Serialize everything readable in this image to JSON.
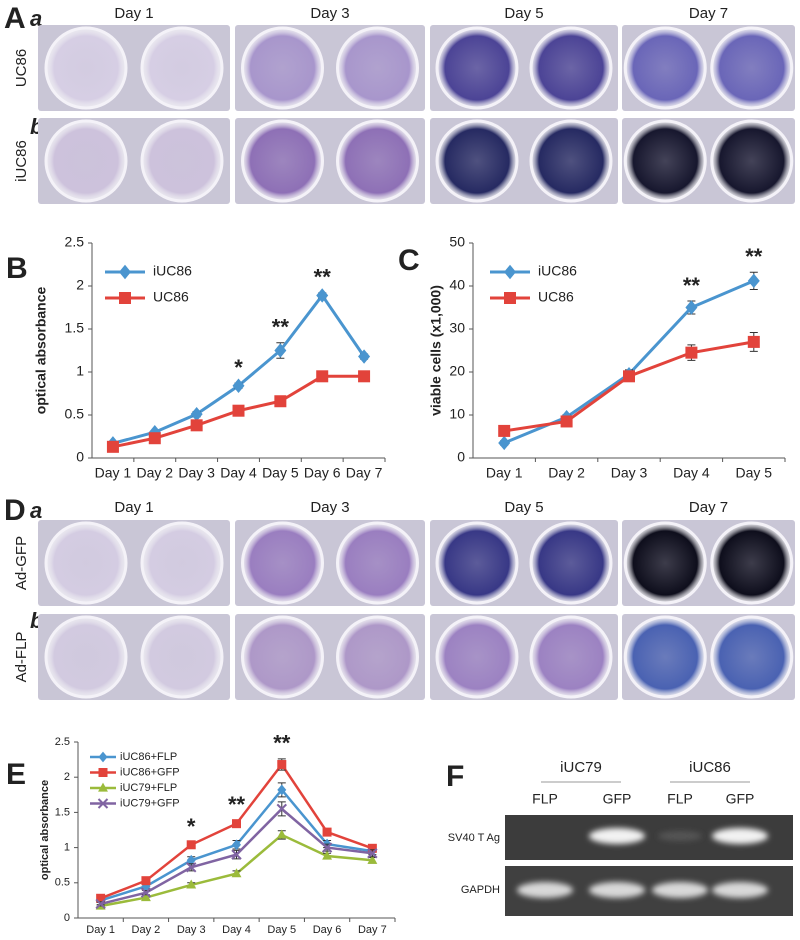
{
  "panel_labels": [
    "A",
    "B",
    "C",
    "D",
    "E",
    "F"
  ],
  "panel_A": {
    "sublabels": [
      "a",
      "b"
    ],
    "days": [
      "Day 1",
      "Day 3",
      "Day 5",
      "Day 7"
    ],
    "rows": [
      "UC86",
      "iUC86"
    ]
  },
  "panel_D": {
    "sublabels": [
      "a",
      "b"
    ],
    "days": [
      "Day 1",
      "Day 3",
      "Day 5",
      "Day 7"
    ],
    "rows": [
      "Ad-GFP",
      "Ad-FLP"
    ]
  },
  "panel_F": {
    "groups": [
      "iUC79",
      "iUC86"
    ],
    "lanes": [
      "FLP",
      "GFP",
      "FLP",
      "GFP"
    ],
    "rows": [
      "SV40 T Ag",
      "GAPDH"
    ]
  },
  "chart_data": [
    {
      "type": "line",
      "ylabel": "optical absorbance",
      "categories": [
        "Day 1",
        "Day 2",
        "Day 3",
        "Day 4",
        "Day 5",
        "Day 6",
        "Day 7"
      ],
      "ylim": [
        0,
        2.5
      ],
      "yticks": [
        0,
        0.5,
        1,
        1.5,
        2,
        2.5
      ],
      "series": [
        {
          "name": "iUC86",
          "color": "#4a95cf",
          "marker": "diamond",
          "values": [
            0.17,
            0.3,
            0.51,
            0.84,
            1.25,
            1.89,
            1.18
          ],
          "errors": [
            0.02,
            0.02,
            0.03,
            0.03,
            0.09,
            0.03,
            0.03
          ]
        },
        {
          "name": "UC86",
          "color": "#e2433b",
          "marker": "square",
          "values": [
            0.13,
            0.23,
            0.38,
            0.55,
            0.66,
            0.95,
            0.95
          ],
          "errors": [
            0.02,
            0.02,
            0.02,
            0.02,
            0.02,
            0.02,
            0.02
          ]
        }
      ],
      "annotations": [
        {
          "text": "*",
          "category": "Day 4"
        },
        {
          "text": "**",
          "category": "Day 5"
        },
        {
          "text": "**",
          "category": "Day 6"
        }
      ]
    },
    {
      "type": "line",
      "ylabel": "viable cells (x1,000)",
      "categories": [
        "Day 1",
        "Day 2",
        "Day 3",
        "Day 4",
        "Day 5"
      ],
      "ylim": [
        0,
        50
      ],
      "yticks": [
        0,
        10,
        20,
        30,
        40,
        50
      ],
      "series": [
        {
          "name": "iUC86",
          "color": "#4a95cf",
          "marker": "diamond",
          "values": [
            3.5,
            9.5,
            19.5,
            35,
            41.2
          ],
          "errors": [
            0.5,
            0.6,
            1,
            1.5,
            2
          ]
        },
        {
          "name": "UC86",
          "color": "#e2433b",
          "marker": "square",
          "values": [
            6.3,
            8.5,
            19,
            24.5,
            27
          ],
          "errors": [
            0.5,
            0.6,
            1.2,
            1.8,
            2.2
          ]
        }
      ],
      "annotations": [
        {
          "text": "**",
          "category": "Day 4"
        },
        {
          "text": "**",
          "category": "Day 5"
        }
      ]
    },
    {
      "type": "line",
      "ylabel": "optical absorbance",
      "categories": [
        "Day 1",
        "Day 2",
        "Day 3",
        "Day 4",
        "Day 5",
        "Day 6",
        "Day 7"
      ],
      "ylim": [
        0,
        2.5
      ],
      "yticks": [
        0,
        0.5,
        1,
        1.5,
        2,
        2.5
      ],
      "series": [
        {
          "name": "iUC86+FLP",
          "color": "#4a95cf",
          "marker": "diamond",
          "values": [
            0.25,
            0.45,
            0.82,
            1.04,
            1.82,
            1.05,
            0.95
          ],
          "errors": [
            0.03,
            0.03,
            0.05,
            0.06,
            0.1,
            0.05,
            0.05
          ]
        },
        {
          "name": "iUC86+GFP",
          "color": "#e2433b",
          "marker": "square",
          "values": [
            0.28,
            0.53,
            1.04,
            1.34,
            2.18,
            1.22,
            0.99
          ],
          "errors": [
            0.03,
            0.03,
            0.04,
            0.05,
            0.08,
            0.05,
            0.04
          ]
        },
        {
          "name": "iUC79+FLP",
          "color": "#9bbb3b",
          "marker": "triangle",
          "values": [
            0.17,
            0.29,
            0.47,
            0.63,
            1.18,
            0.88,
            0.82
          ],
          "errors": [
            0.02,
            0.03,
            0.03,
            0.04,
            0.06,
            0.04,
            0.04
          ]
        },
        {
          "name": "iUC79+GFP",
          "color": "#8064a2",
          "marker": "x",
          "values": [
            0.2,
            0.36,
            0.72,
            0.9,
            1.55,
            1.0,
            0.92
          ],
          "errors": [
            0.03,
            0.03,
            0.05,
            0.06,
            0.1,
            0.05,
            0.05
          ]
        }
      ],
      "annotations": [
        {
          "text": "*",
          "category": "Day 3"
        },
        {
          "text": "**",
          "category": "Day 4"
        },
        {
          "text": "**",
          "category": "Day 5"
        }
      ]
    }
  ]
}
